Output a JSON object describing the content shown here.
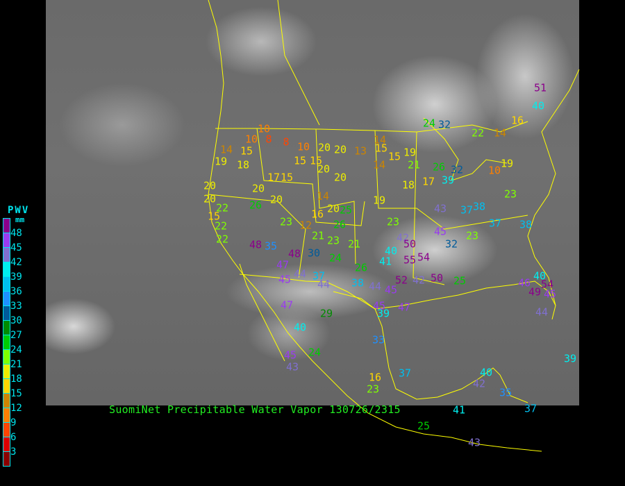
{
  "caption": "SuomiNet Precipitable Water Vapor 130726/2315",
  "legend": {
    "title": "PWV",
    "unit": "mm",
    "ticks": [
      "48",
      "45",
      "42",
      "39",
      "36",
      "33",
      "30",
      "27",
      "24",
      "21",
      "18",
      "15",
      "12",
      "9",
      "6",
      "3"
    ],
    "colors": [
      "#8b008b",
      "#9a3cf0",
      "#8070d0",
      "#00eeee",
      "#00bfef",
      "#1e90ff",
      "#005b9a",
      "#008b00",
      "#00cd00",
      "#7fff00",
      "#eeee00",
      "#ffd700",
      "#cd8500",
      "#ff8000",
      "#ff4500",
      "#dd0000",
      "#8b0000"
    ]
  },
  "coastline_color": "#ffff00",
  "stations": [
    51,
    40,
    16,
    32,
    24,
    22,
    14,
    10,
    10,
    8,
    8,
    10,
    20,
    20,
    13,
    15,
    14,
    14,
    15,
    19,
    18,
    15,
    15,
    20,
    14,
    15,
    19,
    21,
    26,
    32,
    19,
    10,
    20,
    20,
    17,
    15,
    20,
    14,
    18,
    17,
    39,
    23,
    20,
    22,
    26,
    20,
    16,
    20,
    25,
    19,
    43,
    37,
    38,
    15,
    22,
    23,
    26,
    12,
    21,
    23,
    42,
    45,
    37,
    38,
    22,
    48,
    35,
    30,
    23,
    21,
    24,
    40,
    50,
    32,
    23,
    26,
    41,
    55,
    54,
    47,
    44,
    37,
    44,
    38,
    44,
    45,
    52,
    42,
    50,
    25,
    46,
    54,
    49,
    45,
    40,
    47,
    29,
    45,
    39,
    47,
    44,
    40,
    33,
    24,
    45,
    43,
    16,
    23,
    37,
    40,
    42,
    39,
    41,
    25,
    43,
    35,
    37,
    45,
    48
  ]
}
